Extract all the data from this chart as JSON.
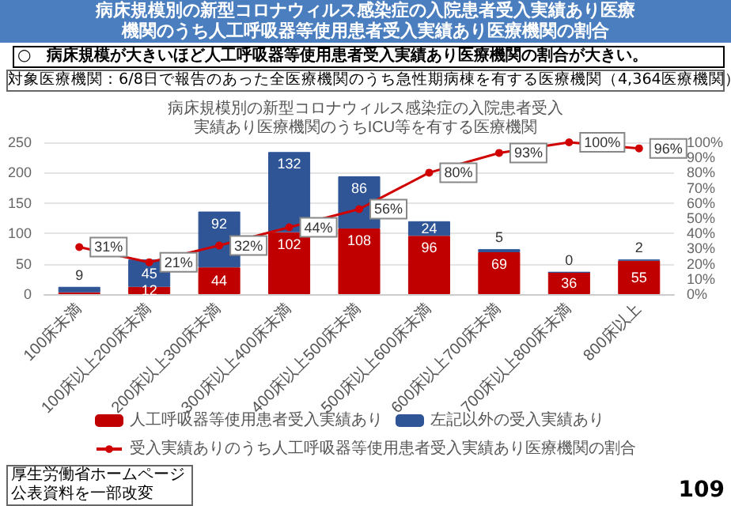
{
  "chart_data": {
    "type": "bar",
    "title": "病床規模別の新型コロナウィルス感染症の入院患者受入実績あり医療機関のうち人工呼吸器等使用患者受入実績あり医療機関の割合",
    "subtitle": "病床規模別の新型コロナウィルス感染症の入院患者受入実績あり医療機関のうちICU等を有する医療機関",
    "annotations": [
      "○　病床規模が大きいほど人工呼吸器等使用患者受入実績あり医療機関の割合が大きい。",
      "対象医療機関：6/8日で報告のあった全医療機関のうち急性期病棟を有する医療機関（4,364医療機関）",
      "厚生労働省ホームページ公表資料を一部改変",
      "109"
    ],
    "categories": [
      "100床未満",
      "100床以上200床未満",
      "200床以上300床未満",
      "300床以上400床未満",
      "400床以上500床未満",
      "500床以上600床未満",
      "600床以上700床未満",
      "700床以上800床未満",
      "800床以上"
    ],
    "stacked": true,
    "series": [
      {
        "name": "人工呼吸器等使用患者受入実績あり",
        "color": "#c00000",
        "values": [
          3,
          12,
          44,
          102,
          108,
          96,
          69,
          36,
          55
        ],
        "value_labels": [
          null,
          "12",
          "44",
          "102",
          "108",
          "96",
          "69",
          "36",
          "55"
        ]
      },
      {
        "name": "左記以外の受入実績あり",
        "color": "#2f5597",
        "values": [
          9,
          45,
          92,
          132,
          86,
          24,
          5,
          0,
          2
        ],
        "value_labels": [
          "9",
          "45",
          "92",
          "132",
          "86",
          "24",
          "5",
          "0",
          "2"
        ]
      },
      {
        "name": "受入実績ありのうち人工呼吸器等使用患者受入実績あり医療機関の割合",
        "type": "line",
        "axis": "y2",
        "color": "#d00000",
        "values": [
          31,
          21,
          32,
          44,
          56,
          80,
          93,
          100,
          96
        ],
        "value_labels": [
          "31%",
          "21%",
          "32%",
          "44%",
          "56%",
          "80%",
          "93%",
          "100%",
          "96%"
        ]
      }
    ],
    "ylim": [
      0,
      250
    ],
    "yticks": [
      0,
      50,
      100,
      150,
      200,
      250
    ],
    "y2lim": [
      0,
      100
    ],
    "y2ticks": [
      {
        "value": 0,
        "label": "0%"
      },
      {
        "value": 10,
        "label": "10%"
      },
      {
        "value": 20,
        "label": "20%"
      },
      {
        "value": 30,
        "label": "30%"
      },
      {
        "value": 40,
        "label": "40%"
      },
      {
        "value": 50,
        "label": "50%"
      },
      {
        "value": 60,
        "label": "60%"
      },
      {
        "value": 70,
        "label": "70%"
      },
      {
        "value": 80,
        "label": "80%"
      },
      {
        "value": 90,
        "label": "90%"
      },
      {
        "value": 100,
        "label": "100%"
      }
    ],
    "grid": "y",
    "legend": "bottom",
    "marker": "circle"
  }
}
